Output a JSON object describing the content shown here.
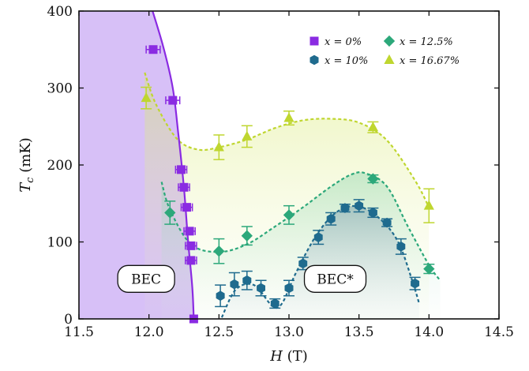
{
  "chart_data": {
    "type": "scatter",
    "xlabel_var": "H",
    "xlabel_unit": " (T)",
    "ylabel_var": "T",
    "ylabel_sub": "c",
    "ylabel_unit": " (mK)",
    "xlim": [
      11.5,
      14.5
    ],
    "ylim": [
      0,
      400
    ],
    "xticks": [
      "11.5",
      "12.0",
      "12.5",
      "13.0",
      "13.5",
      "14.0",
      "14.5"
    ],
    "yticks": [
      "0",
      "100",
      "200",
      "300",
      "400"
    ],
    "grid": false,
    "legend_placement": "top-right",
    "regions": [
      {
        "label": "BEC",
        "x": 11.98,
        "y": 52
      },
      {
        "label": "BEC*",
        "x": 13.33,
        "y": 52
      }
    ],
    "series": [
      {
        "name": "x = 0%",
        "color": "#8a2be2",
        "marker": "square",
        "points": [
          {
            "x": 12.03,
            "y": 350,
            "xerr": 0.05
          },
          {
            "x": 12.17,
            "y": 284,
            "xerr": 0.05
          },
          {
            "x": 12.23,
            "y": 194,
            "xerr": 0.04
          },
          {
            "x": 12.25,
            "y": 171,
            "xerr": 0.04
          },
          {
            "x": 12.27,
            "y": 145,
            "xerr": 0.04
          },
          {
            "x": 12.29,
            "y": 114,
            "xerr": 0.04
          },
          {
            "x": 12.3,
            "y": 95,
            "xerr": 0.04
          },
          {
            "x": 12.3,
            "y": 76,
            "xerr": 0.04
          },
          {
            "x": 12.32,
            "y": 0,
            "xerr": 0
          }
        ]
      },
      {
        "name": "x = 10%",
        "color": "#1f6b8e",
        "marker": "hexagon",
        "points": [
          {
            "x": 12.51,
            "y": 30,
            "yerr": 14
          },
          {
            "x": 12.61,
            "y": 45,
            "yerr": 15
          },
          {
            "x": 12.7,
            "y": 50,
            "yerr": 12
          },
          {
            "x": 12.8,
            "y": 40,
            "yerr": 10
          },
          {
            "x": 12.9,
            "y": 20,
            "yerr": 6
          },
          {
            "x": 13.0,
            "y": 40,
            "yerr": 10
          },
          {
            "x": 13.1,
            "y": 72,
            "yerr": 8
          },
          {
            "x": 13.21,
            "y": 106,
            "yerr": 9
          },
          {
            "x": 13.3,
            "y": 130,
            "yerr": 8
          },
          {
            "x": 13.4,
            "y": 144,
            "yerr": 5
          },
          {
            "x": 13.5,
            "y": 147,
            "yerr": 8
          },
          {
            "x": 13.6,
            "y": 138,
            "yerr": 6
          },
          {
            "x": 13.7,
            "y": 125,
            "yerr": 5
          },
          {
            "x": 13.8,
            "y": 94,
            "yerr": 10
          },
          {
            "x": 13.9,
            "y": 46,
            "yerr": 8
          }
        ],
        "fit": [
          [
            12.52,
            2
          ],
          [
            12.62,
            38
          ],
          [
            12.75,
            44
          ],
          [
            12.88,
            17
          ],
          [
            12.95,
            20
          ],
          [
            13.05,
            60
          ],
          [
            13.2,
            110
          ],
          [
            13.35,
            140
          ],
          [
            13.5,
            146
          ],
          [
            13.65,
            130
          ],
          [
            13.78,
            100
          ],
          [
            13.88,
            50
          ],
          [
            13.93,
            20
          ]
        ]
      },
      {
        "name": "x = 12.5%",
        "color": "#2ca87a",
        "marker": "diamond",
        "points": [
          {
            "x": 12.15,
            "y": 138,
            "yerr": 15
          },
          {
            "x": 12.5,
            "y": 88,
            "yerr": 16
          },
          {
            "x": 12.7,
            "y": 108,
            "yerr": 12
          },
          {
            "x": 13.0,
            "y": 135,
            "yerr": 12
          },
          {
            "x": 13.6,
            "y": 182,
            "yerr": 5
          },
          {
            "x": 14.0,
            "y": 65,
            "yerr": 6
          }
        ],
        "fit": [
          [
            12.09,
            178
          ],
          [
            12.15,
            142
          ],
          [
            12.3,
            97
          ],
          [
            12.5,
            87
          ],
          [
            12.7,
            97
          ],
          [
            12.9,
            120
          ],
          [
            13.1,
            145
          ],
          [
            13.3,
            172
          ],
          [
            13.45,
            188
          ],
          [
            13.55,
            189
          ],
          [
            13.7,
            172
          ],
          [
            13.85,
            120
          ],
          [
            14.0,
            70
          ],
          [
            14.08,
            50
          ]
        ]
      },
      {
        "name": "x = 16.67%",
        "color": "#bfd62f",
        "marker": "triangle",
        "points": [
          {
            "x": 11.98,
            "y": 287,
            "yerr": 14
          },
          {
            "x": 12.5,
            "y": 223,
            "yerr": 16
          },
          {
            "x": 12.7,
            "y": 237,
            "yerr": 14
          },
          {
            "x": 13.0,
            "y": 261,
            "yerr": 9
          },
          {
            "x": 13.6,
            "y": 249,
            "yerr": 7
          },
          {
            "x": 14.0,
            "y": 147,
            "yerr": 22
          }
        ],
        "fit": [
          [
            11.97,
            320
          ],
          [
            12.05,
            279
          ],
          [
            12.2,
            234
          ],
          [
            12.35,
            220
          ],
          [
            12.5,
            223
          ],
          [
            12.7,
            233
          ],
          [
            12.9,
            248
          ],
          [
            13.1,
            258
          ],
          [
            13.3,
            260
          ],
          [
            13.5,
            255
          ],
          [
            13.7,
            232
          ],
          [
            13.9,
            180
          ],
          [
            14.0,
            145
          ]
        ]
      }
    ],
    "bec_boundary": [
      [
        12.0,
        415
      ],
      [
        12.1,
        355
      ],
      [
        12.17,
        300
      ],
      [
        12.21,
        240
      ],
      [
        12.25,
        170
      ],
      [
        12.28,
        100
      ],
      [
        12.31,
        40
      ],
      [
        12.32,
        0
      ]
    ]
  }
}
